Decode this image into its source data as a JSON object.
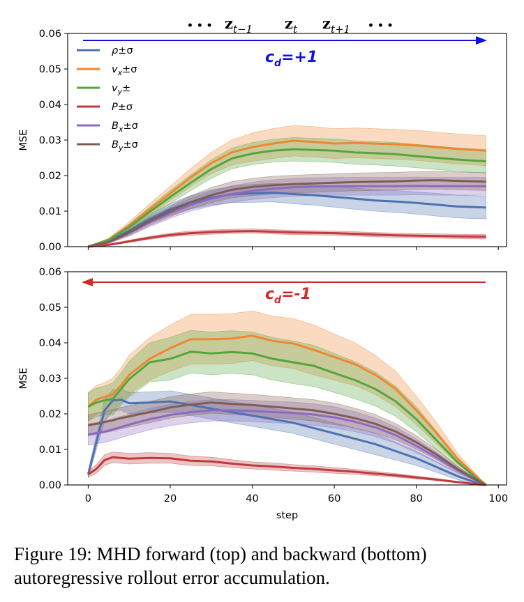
{
  "sequence_label": {
    "dots_left": "• • •",
    "z_prev": "z",
    "z_prev_sub": "t−1",
    "z_cur": "z",
    "z_cur_sub": "t",
    "z_next": "z",
    "z_next_sub": "t+1",
    "dots_right": "• • •"
  },
  "caption": "Figure 19: MHD forward (top) and backward (bottom) autoregressive rollout error accumulation.",
  "colors": {
    "rho": "#4c72b0",
    "vx": "#ee8731",
    "vy": "#54a53e",
    "P": "#c03a3d",
    "Bx": "#8c6ac0",
    "By": "#815c53",
    "forward_arrow": "#1010e0",
    "backward_arrow": "#d62728"
  },
  "chart_data": [
    {
      "type": "line",
      "name": "forward",
      "xlabel": "",
      "ylabel": "MSE",
      "xlim": [
        -5,
        102
      ],
      "ylim": [
        0,
        0.06
      ],
      "yticks": [
        "0.00",
        "0.01",
        "0.02",
        "0.03",
        "0.04",
        "0.05",
        "0.06"
      ],
      "xticks": [],
      "grid": false,
      "legend_position": "top-left",
      "direction_label": "c",
      "direction_sub": "d",
      "direction_value": "=+1",
      "arrow": "right",
      "x": [
        0,
        5,
        10,
        15,
        20,
        25,
        30,
        35,
        40,
        45,
        50,
        55,
        60,
        65,
        70,
        75,
        80,
        85,
        90,
        97
      ],
      "series": [
        {
          "key": "rho",
          "legend_main": "ρ",
          "legend_sub": "",
          "legend_suffix": "±σ",
          "values": [
            0.0,
            0.0015,
            0.0045,
            0.0078,
            0.0105,
            0.0125,
            0.0138,
            0.0147,
            0.015,
            0.0152,
            0.0148,
            0.0145,
            0.014,
            0.0135,
            0.013,
            0.0127,
            0.0123,
            0.0118,
            0.0113,
            0.011
          ],
          "spread": [
            0.0,
            0.0003,
            0.0008,
            0.0012,
            0.0016,
            0.0019,
            0.0021,
            0.0023,
            0.0025,
            0.0026,
            0.0027,
            0.0028,
            0.0029,
            0.003,
            0.003,
            0.0031,
            0.0031,
            0.0032,
            0.0032,
            0.0032
          ]
        },
        {
          "key": "vx",
          "legend_main": "v",
          "legend_sub": "x",
          "legend_suffix": "±σ",
          "values": [
            0.0,
            0.002,
            0.006,
            0.0105,
            0.015,
            0.0195,
            0.0235,
            0.0265,
            0.028,
            0.029,
            0.0298,
            0.0295,
            0.029,
            0.0292,
            0.029,
            0.0288,
            0.0285,
            0.028,
            0.0275,
            0.027
          ],
          "spread": [
            0.0,
            0.0004,
            0.001,
            0.0016,
            0.002,
            0.0025,
            0.003,
            0.0035,
            0.004,
            0.0042,
            0.0043,
            0.0043,
            0.0042,
            0.0042,
            0.0042,
            0.0042,
            0.0042,
            0.0042,
            0.0042,
            0.0042
          ]
        },
        {
          "key": "vy",
          "legend_main": "v",
          "legend_sub": "y",
          "legend_suffix": "±",
          "values": [
            0.0,
            0.0018,
            0.0055,
            0.0098,
            0.014,
            0.018,
            0.0218,
            0.0248,
            0.0262,
            0.027,
            0.0274,
            0.0272,
            0.027,
            0.0265,
            0.0263,
            0.026,
            0.0255,
            0.025,
            0.0245,
            0.024
          ],
          "spread": [
            0.0,
            0.0004,
            0.0009,
            0.0014,
            0.0018,
            0.0022,
            0.0026,
            0.0029,
            0.0031,
            0.0032,
            0.0033,
            0.0033,
            0.0033,
            0.0033,
            0.0033,
            0.0033,
            0.0033,
            0.0033,
            0.0033,
            0.0033
          ]
        },
        {
          "key": "P",
          "legend_main": "P",
          "legend_sub": "",
          "legend_suffix": "±σ",
          "values": [
            0.0,
            0.0005,
            0.0015,
            0.0025,
            0.0033,
            0.0038,
            0.0041,
            0.0043,
            0.0044,
            0.0042,
            0.004,
            0.0039,
            0.0038,
            0.0036,
            0.0034,
            0.0032,
            0.0031,
            0.003,
            0.0029,
            0.0028
          ],
          "spread": [
            0.0,
            0.0002,
            0.0003,
            0.0004,
            0.0005,
            0.0006,
            0.0006,
            0.0006,
            0.0006,
            0.0006,
            0.0006,
            0.0006,
            0.0006,
            0.0006,
            0.0006,
            0.0006,
            0.0006,
            0.0006,
            0.0006,
            0.0006
          ]
        },
        {
          "key": "Bx",
          "legend_main": "B",
          "legend_sub": "x",
          "legend_suffix": "±σ",
          "values": [
            0.0,
            0.0012,
            0.0038,
            0.0068,
            0.0095,
            0.0118,
            0.0135,
            0.0148,
            0.0157,
            0.0163,
            0.0167,
            0.0169,
            0.017,
            0.017,
            0.017,
            0.017,
            0.0171,
            0.017,
            0.017,
            0.017
          ],
          "spread": [
            0.0,
            0.0003,
            0.0008,
            0.0012,
            0.0015,
            0.0018,
            0.0021,
            0.0023,
            0.0024,
            0.0025,
            0.0025,
            0.0025,
            0.0025,
            0.0025,
            0.0025,
            0.0025,
            0.0025,
            0.0025,
            0.0025,
            0.0025
          ]
        },
        {
          "key": "By",
          "legend_main": "B",
          "legend_sub": "y",
          "legend_suffix": "±σ",
          "values": [
            0.0,
            0.0013,
            0.004,
            0.0072,
            0.01,
            0.0125,
            0.0145,
            0.016,
            0.0168,
            0.0173,
            0.0176,
            0.0178,
            0.018,
            0.0182,
            0.0183,
            0.0184,
            0.0186,
            0.0187,
            0.0185,
            0.0183
          ],
          "spread": [
            0.0,
            0.0003,
            0.0008,
            0.0012,
            0.0015,
            0.0018,
            0.0021,
            0.0023,
            0.0024,
            0.0025,
            0.0025,
            0.0025,
            0.0025,
            0.0025,
            0.0025,
            0.0025,
            0.0025,
            0.0025,
            0.0025,
            0.0025
          ]
        }
      ]
    },
    {
      "type": "line",
      "name": "backward",
      "xlabel": "step",
      "ylabel": "MSE",
      "xlim": [
        -5,
        102
      ],
      "ylim": [
        0,
        0.06
      ],
      "yticks": [
        "0.00",
        "0.01",
        "0.02",
        "0.03",
        "0.04",
        "0.05",
        "0.06"
      ],
      "xticks": [
        "0",
        "20",
        "40",
        "60",
        "80",
        "100"
      ],
      "grid": false,
      "legend_position": "none",
      "direction_label": "c",
      "direction_sub": "d",
      "direction_value": "=-1",
      "arrow": "left",
      "x": [
        0,
        2,
        4,
        6,
        8,
        10,
        15,
        20,
        25,
        30,
        35,
        40,
        45,
        50,
        55,
        60,
        65,
        70,
        75,
        80,
        85,
        90,
        95,
        97
      ],
      "series": [
        {
          "key": "rho",
          "values": [
            0.003,
            0.012,
            0.021,
            0.0238,
            0.024,
            0.023,
            0.0232,
            0.0235,
            0.0225,
            0.0215,
            0.0205,
            0.0195,
            0.0185,
            0.0175,
            0.016,
            0.0145,
            0.013,
            0.0115,
            0.0095,
            0.0075,
            0.005,
            0.0025,
            0.0005,
            0.0
          ],
          "spread": [
            0.001,
            0.002,
            0.003,
            0.003,
            0.003,
            0.003,
            0.003,
            0.003,
            0.003,
            0.003,
            0.003,
            0.003,
            0.003,
            0.003,
            0.003,
            0.003,
            0.003,
            0.003,
            0.0025,
            0.002,
            0.0015,
            0.001,
            0.0005,
            0.0
          ]
        },
        {
          "key": "vx",
          "values": [
            0.022,
            0.024,
            0.0248,
            0.0255,
            0.028,
            0.031,
            0.0355,
            0.0385,
            0.041,
            0.041,
            0.0412,
            0.042,
            0.0405,
            0.0398,
            0.038,
            0.036,
            0.034,
            0.031,
            0.027,
            0.021,
            0.0145,
            0.0075,
            0.002,
            0.0
          ],
          "spread": [
            0.004,
            0.004,
            0.004,
            0.0045,
            0.005,
            0.0055,
            0.006,
            0.0065,
            0.007,
            0.007,
            0.007,
            0.007,
            0.007,
            0.007,
            0.007,
            0.0065,
            0.006,
            0.0055,
            0.005,
            0.004,
            0.003,
            0.0015,
            0.0005,
            0.0
          ]
        },
        {
          "key": "vy",
          "values": [
            0.022,
            0.0232,
            0.0238,
            0.0242,
            0.027,
            0.0298,
            0.0345,
            0.0355,
            0.0375,
            0.037,
            0.0374,
            0.037,
            0.0355,
            0.0345,
            0.0335,
            0.0315,
            0.0295,
            0.027,
            0.0235,
            0.0185,
            0.0125,
            0.0065,
            0.0015,
            0.0
          ],
          "spread": [
            0.004,
            0.004,
            0.004,
            0.0045,
            0.0045,
            0.005,
            0.0055,
            0.006,
            0.006,
            0.006,
            0.006,
            0.006,
            0.006,
            0.006,
            0.0058,
            0.0055,
            0.0052,
            0.0048,
            0.0042,
            0.0035,
            0.0025,
            0.0013,
            0.0004,
            0.0
          ]
        },
        {
          "key": "P",
          "values": [
            0.003,
            0.0045,
            0.007,
            0.0078,
            0.0076,
            0.0074,
            0.0076,
            0.0075,
            0.0068,
            0.0066,
            0.006,
            0.0055,
            0.0052,
            0.0048,
            0.0045,
            0.0041,
            0.0037,
            0.0032,
            0.0027,
            0.0021,
            0.0015,
            0.0008,
            0.0002,
            0.0
          ],
          "spread": [
            0.0008,
            0.0012,
            0.0015,
            0.0015,
            0.0015,
            0.0015,
            0.0015,
            0.0014,
            0.0013,
            0.0012,
            0.0011,
            0.001,
            0.001,
            0.0009,
            0.0009,
            0.0008,
            0.0007,
            0.0006,
            0.0005,
            0.0004,
            0.0003,
            0.0002,
            0.0001,
            0.0
          ]
        },
        {
          "key": "Bx",
          "values": [
            0.0142,
            0.0146,
            0.015,
            0.0156,
            0.0163,
            0.017,
            0.0185,
            0.0197,
            0.0205,
            0.021,
            0.021,
            0.0208,
            0.0205,
            0.0203,
            0.0198,
            0.019,
            0.0178,
            0.0162,
            0.014,
            0.011,
            0.0077,
            0.0042,
            0.001,
            0.0
          ],
          "spread": [
            0.003,
            0.003,
            0.003,
            0.003,
            0.003,
            0.003,
            0.003,
            0.003,
            0.003,
            0.003,
            0.003,
            0.003,
            0.003,
            0.003,
            0.003,
            0.003,
            0.0028,
            0.0026,
            0.0023,
            0.0019,
            0.0014,
            0.0008,
            0.0002,
            0.0
          ]
        },
        {
          "key": "By",
          "values": [
            0.0168,
            0.0172,
            0.0177,
            0.0182,
            0.0188,
            0.0193,
            0.0205,
            0.0218,
            0.0226,
            0.0232,
            0.0228,
            0.0225,
            0.022,
            0.0215,
            0.021,
            0.02,
            0.0188,
            0.0172,
            0.015,
            0.012,
            0.0085,
            0.0045,
            0.0012,
            0.0
          ],
          "spread": [
            0.003,
            0.003,
            0.003,
            0.003,
            0.003,
            0.003,
            0.003,
            0.003,
            0.003,
            0.003,
            0.003,
            0.003,
            0.003,
            0.003,
            0.003,
            0.003,
            0.0028,
            0.0026,
            0.0023,
            0.0019,
            0.0014,
            0.0008,
            0.0002,
            0.0
          ]
        }
      ]
    }
  ]
}
